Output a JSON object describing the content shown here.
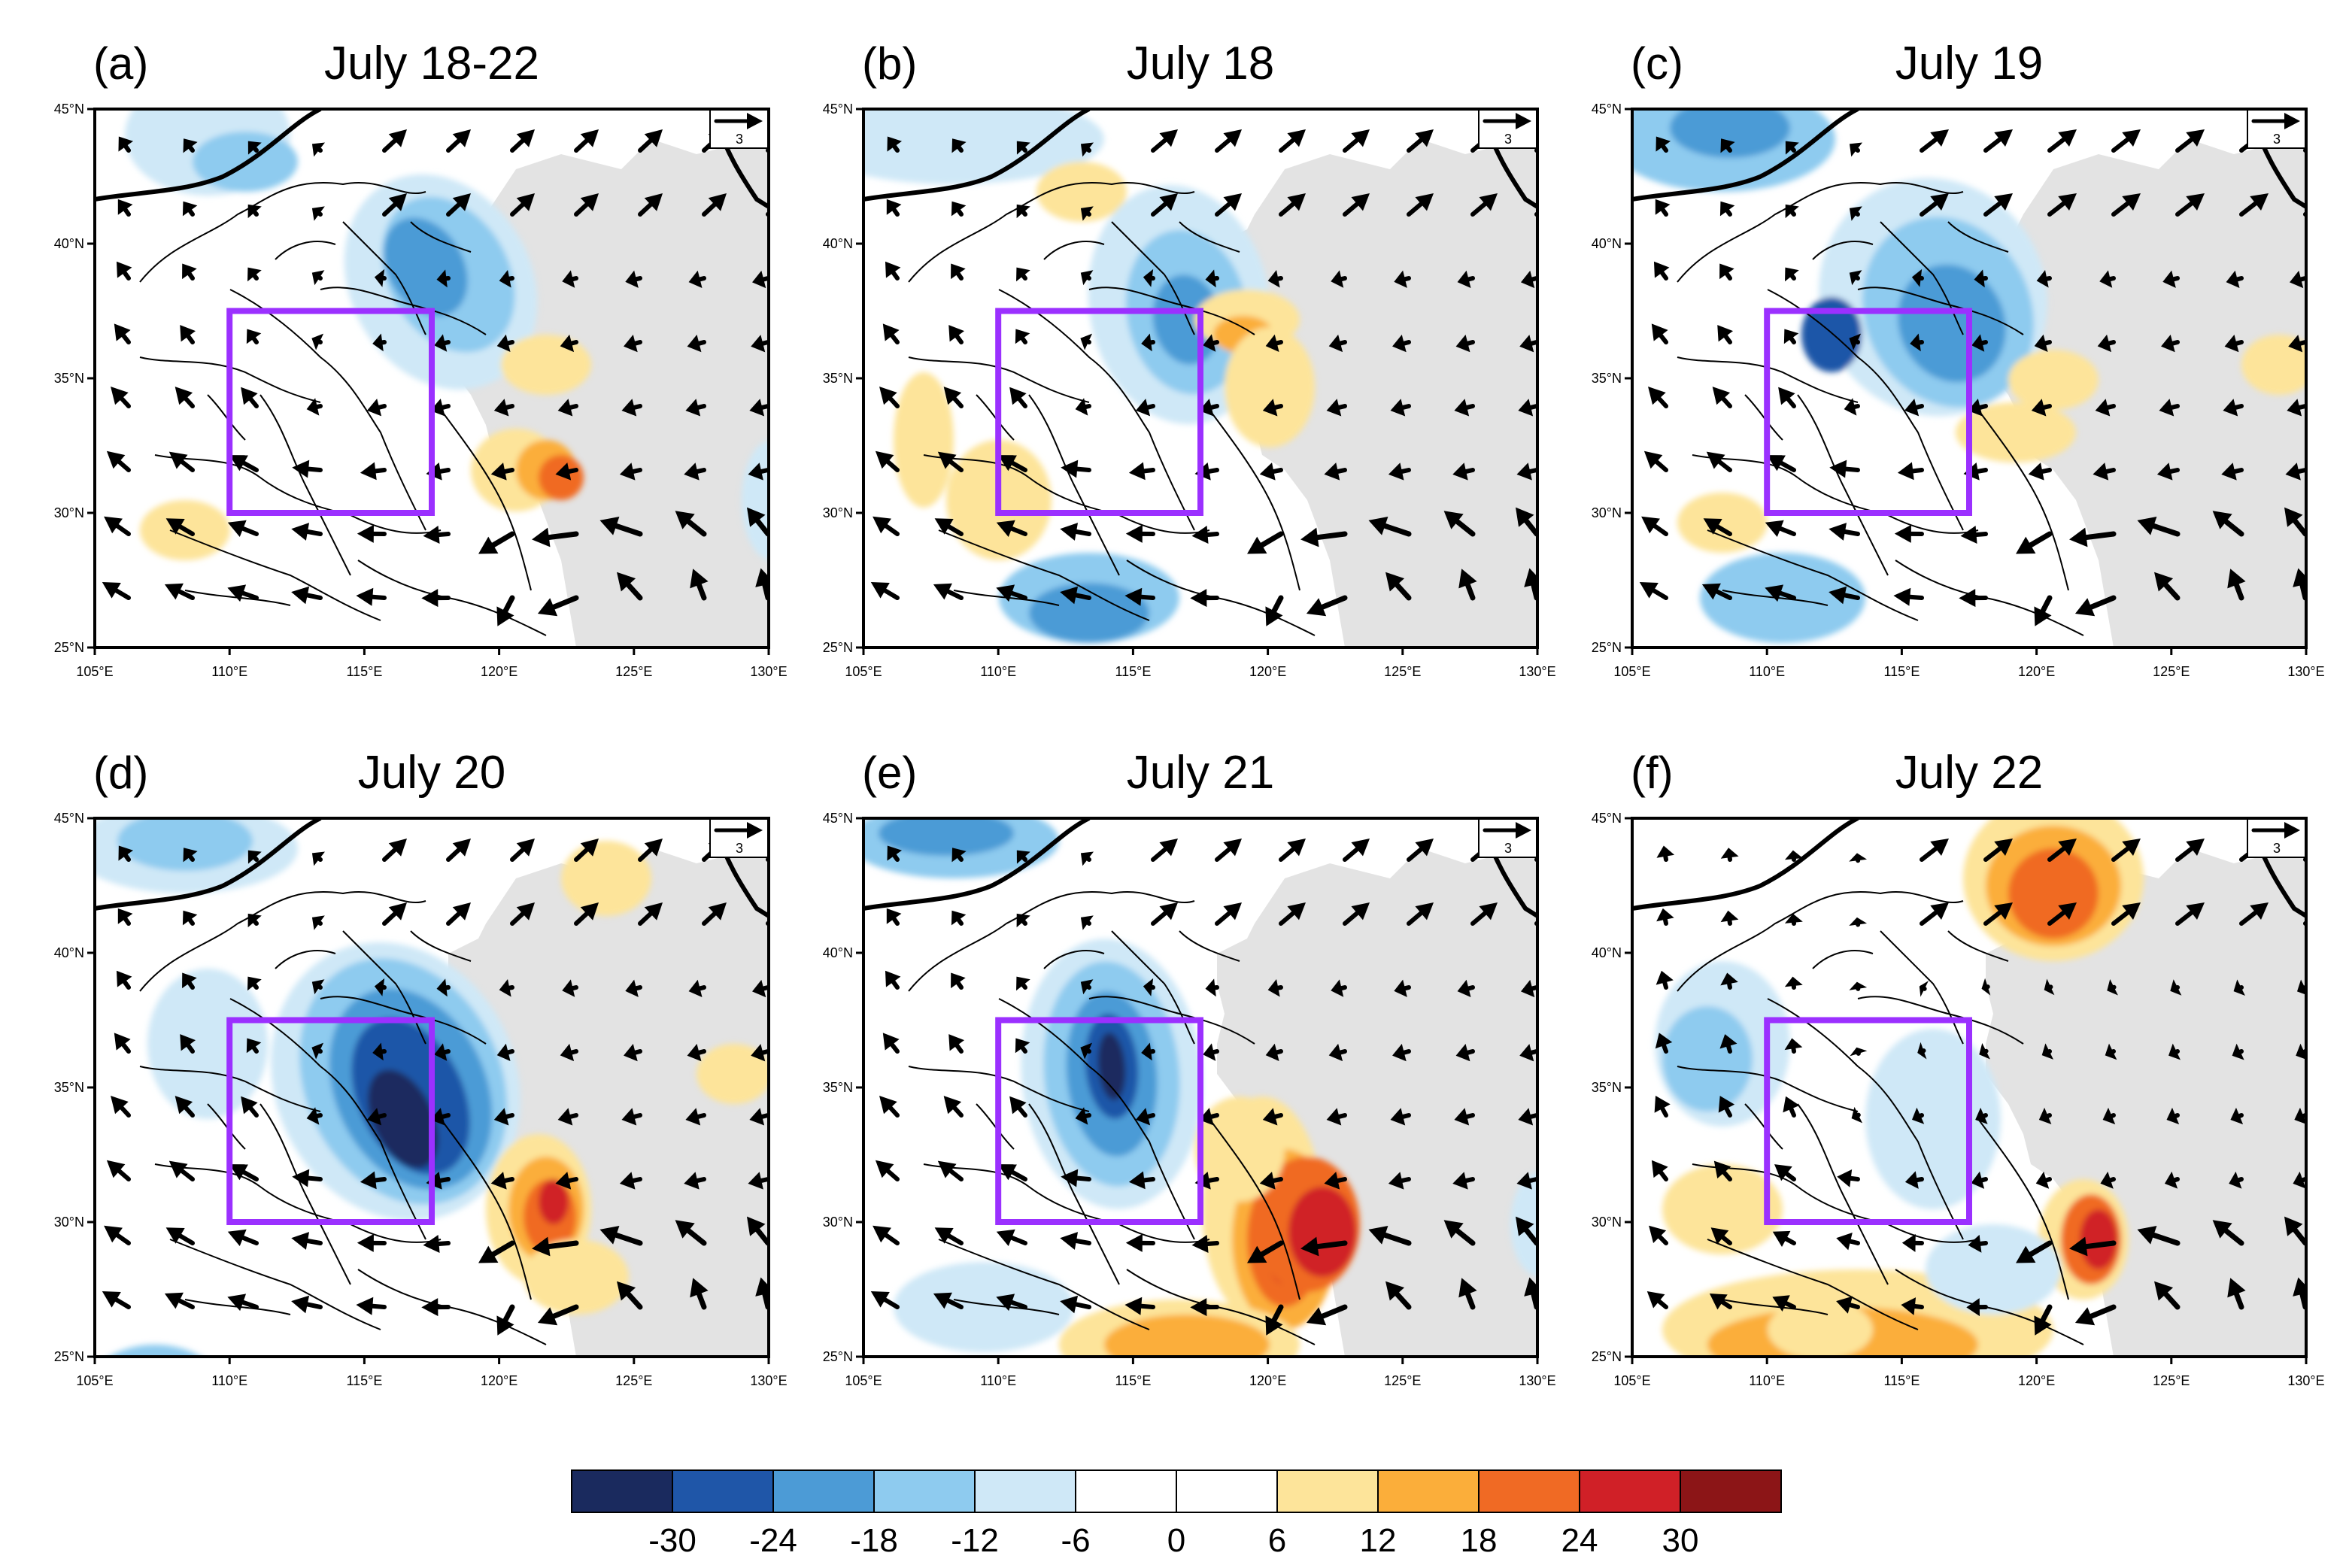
{
  "figure": {
    "panels": [
      {
        "letter": "(a)",
        "title": "July 18-22"
      },
      {
        "letter": "(b)",
        "title": "July 18"
      },
      {
        "letter": "(c)",
        "title": "July 19"
      },
      {
        "letter": "(d)",
        "title": "July 20"
      },
      {
        "letter": "(e)",
        "title": "July 21"
      },
      {
        "letter": "(f)",
        "title": "July 22"
      }
    ],
    "lon_ticks": [
      "105°E",
      "110°E",
      "115°E",
      "120°E",
      "125°E",
      "130°E"
    ],
    "lat_ticks": [
      "25°N",
      "30°N",
      "35°N",
      "40°N",
      "45°N"
    ],
    "ref_vector_label": "3",
    "box_color": "#9b30ff"
  },
  "map_extent": {
    "lon": [
      105,
      130
    ],
    "lat": [
      25,
      45
    ]
  },
  "study_box": {
    "lon": [
      110,
      117.5
    ],
    "lat": [
      30,
      37.5
    ]
  },
  "colorbar": {
    "labels": [
      "-30",
      "-24",
      "-18",
      "-12",
      "-6",
      "0",
      "6",
      "12",
      "18",
      "24",
      "30"
    ],
    "colors": [
      "#1a2a5e",
      "#1f56a8",
      "#4c9bd6",
      "#8ecbef",
      "#cfe8f7",
      "#ffffff",
      "#ffffff",
      "#fde49a",
      "#fbae3a",
      "#f06a24",
      "#d02027",
      "#8c1517"
    ]
  }
}
